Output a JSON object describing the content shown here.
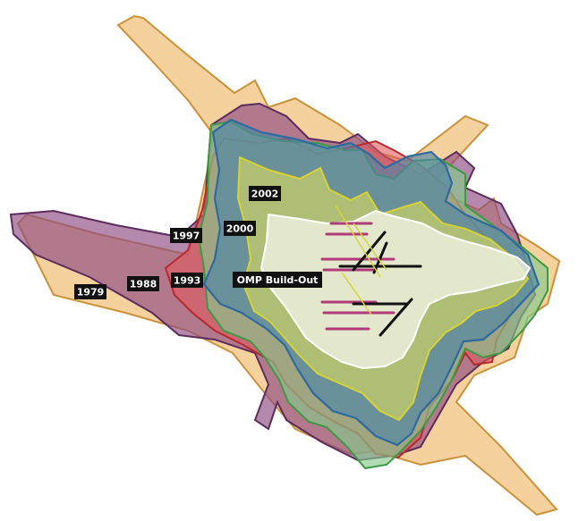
{
  "layers": [
    {
      "label": "1979",
      "fill": "#f2c27e",
      "stroke": "#c9923a"
    },
    {
      "label": "1988",
      "fill": "#8d4a82",
      "stroke": "#5d2c5e"
    },
    {
      "label": "1993",
      "fill": "#e05a5e",
      "stroke": "#b8282c"
    },
    {
      "label": "1997",
      "fill": "#86c98a",
      "stroke": "#3c9a44"
    },
    {
      "label": "2000",
      "fill": "#4f84a6",
      "stroke": "#2e6aa0"
    },
    {
      "label": "2002",
      "fill": "#c6cf6a",
      "stroke": "#d8d233"
    },
    {
      "label": "OMP Build-Out",
      "fill": "#f0f2e4",
      "stroke": "#ffffff"
    }
  ],
  "runway_colors": {
    "existing": "#b03a78",
    "new": "#111111"
  }
}
